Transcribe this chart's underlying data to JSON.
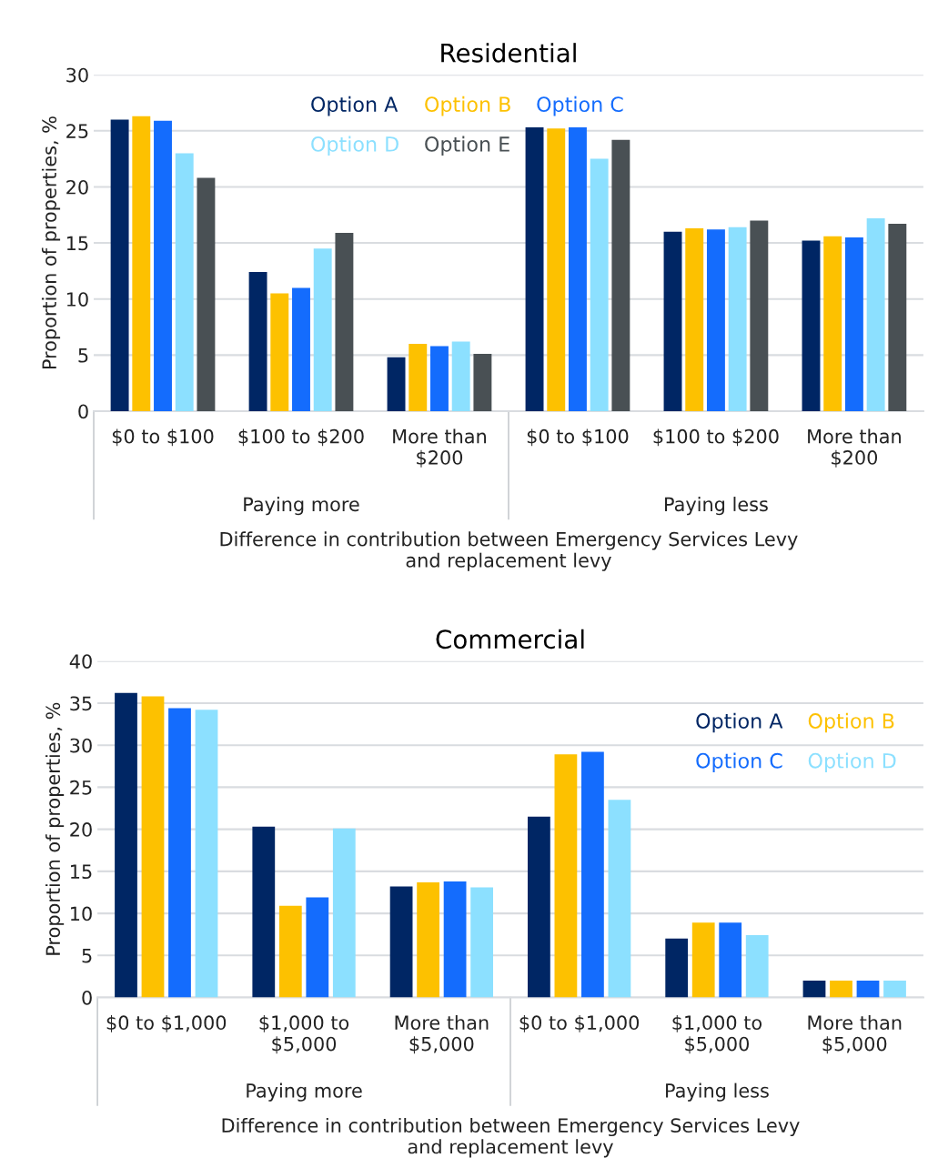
{
  "chart_data": [
    {
      "type": "bar",
      "title": "Residential",
      "ylabel": "Proportion of properties, %",
      "xlabel": "Difference in contribution between Emergency Services Levy\nand replacement levy",
      "categories": [
        "$0 to $100",
        "$100 to $200",
        "More than\n$200",
        "$0 to $100",
        "$100 to $200",
        "More than\n$200"
      ],
      "annotations": [
        "Paying more",
        "Paying less"
      ],
      "ylim": [
        0,
        30
      ],
      "yticks": [
        0,
        5,
        10,
        15,
        20,
        25,
        30
      ],
      "grid": "y",
      "legend": "top",
      "series": [
        {
          "name": "Option A",
          "color": "#002664",
          "values": [
            26.0,
            12.4,
            4.8,
            25.3,
            16.0,
            15.2
          ]
        },
        {
          "name": "Option B",
          "color": "#fdc100",
          "values": [
            26.3,
            10.5,
            6.0,
            25.2,
            16.3,
            15.6
          ]
        },
        {
          "name": "Option C",
          "color": "#146cfd",
          "values": [
            25.9,
            11.0,
            5.8,
            25.3,
            16.2,
            15.5
          ]
        },
        {
          "name": "Option D",
          "color": "#8ce0ff",
          "values": [
            23.0,
            14.5,
            6.2,
            22.5,
            16.4,
            17.2
          ]
        },
        {
          "name": "Option E",
          "color": "#495054",
          "values": [
            20.8,
            15.9,
            5.1,
            24.2,
            17.0,
            16.7
          ]
        }
      ]
    },
    {
      "type": "bar",
      "title": "Commercial",
      "ylabel": "Proportion of properties, %",
      "xlabel": "Difference in contribution between Emergency Services Levy\nand replacement levy",
      "categories": [
        "$0 to $1,000",
        "$1,000 to\n$5,000",
        "More than\n$5,000",
        "$0 to $1,000",
        "$1,000 to\n$5,000",
        "More than\n$5,000"
      ],
      "annotations": [
        "Paying more",
        "Paying less"
      ],
      "ylim": [
        0,
        40
      ],
      "yticks": [
        0,
        5,
        10,
        15,
        20,
        25,
        30,
        35,
        40
      ],
      "grid": "y",
      "legend": "top right",
      "series": [
        {
          "name": "Option A",
          "color": "#002664",
          "values": [
            36.2,
            20.3,
            13.2,
            21.5,
            7.0,
            2.0
          ]
        },
        {
          "name": "Option B",
          "color": "#fdc100",
          "values": [
            35.8,
            10.9,
            13.7,
            28.9,
            8.9,
            2.0
          ]
        },
        {
          "name": "Option C",
          "color": "#146cfd",
          "values": [
            34.4,
            11.9,
            13.8,
            29.2,
            8.9,
            2.0
          ]
        },
        {
          "name": "Option D",
          "color": "#8ce0ff",
          "values": [
            34.2,
            20.1,
            13.1,
            23.5,
            7.4,
            2.0
          ]
        }
      ]
    }
  ]
}
